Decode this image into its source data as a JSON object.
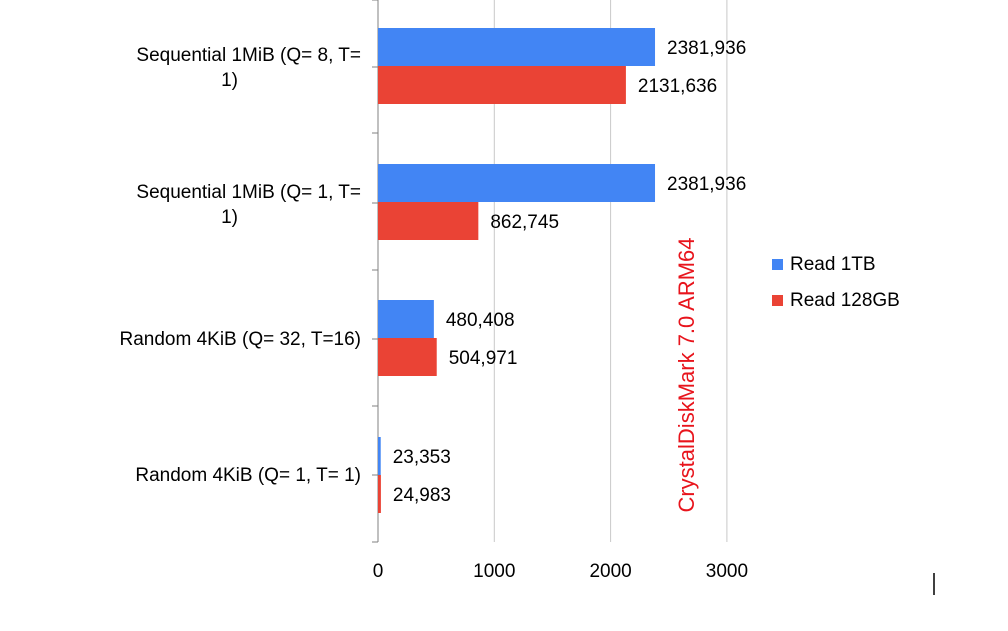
{
  "chart_data": {
    "type": "bar",
    "orientation": "horizontal",
    "title": "",
    "xlabel": "",
    "ylabel": "",
    "xlim": [
      0,
      3000
    ],
    "x_ticks": [
      "0",
      "1000",
      "2000",
      "3000"
    ],
    "grid": true,
    "legend_position": "right",
    "categories": [
      [
        "Sequential 1MiB (Q=  8, T=",
        "1)"
      ],
      [
        "Sequential 1MiB (Q=  1, T=",
        "1)"
      ],
      [
        "Random 4KiB (Q= 32, T=16)"
      ],
      [
        "Random 4KiB (Q=  1, T= 1)"
      ]
    ],
    "series": [
      {
        "name": "Read 1TB",
        "color": "#4285f4",
        "values": [
          2381.936,
          2381.936,
          480.408,
          23.353
        ],
        "labels": [
          "2381,936",
          "2381,936",
          "480,408",
          "23,353"
        ]
      },
      {
        "name": "Read 128GB",
        "color": "#ea4335",
        "values": [
          2131.636,
          862.745,
          504.971,
          24.983
        ],
        "labels": [
          "2131,636",
          "862,745",
          "504,971",
          "24,983"
        ]
      }
    ],
    "annotation": {
      "text": "CrystalDiskMark 7.0 ARM64",
      "color": "#e8141c"
    }
  }
}
